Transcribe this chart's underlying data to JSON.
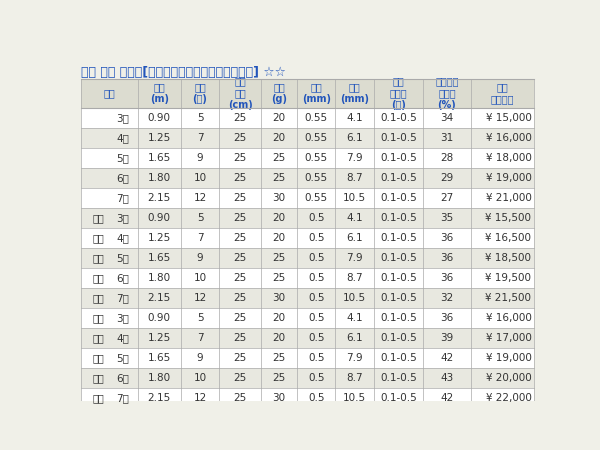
{
  "title": "精魂 別誂 小鮒丹[せいこんべっちょうこぶなたん] ☆☆",
  "title_color": "#2255bb",
  "bg_color": "#f0f0e8",
  "header_bg": "#dcdcd0",
  "row_bg_odd": "#ffffff",
  "row_bg_even": "#e8e8e0",
  "border_color": "#aaaaaa",
  "text_color": "#333333",
  "col_headers": [
    "品番",
    "全長\n(m)",
    "継数\n(本)",
    "仕舞\n寸法\n(cm)",
    "自重\n(g)",
    "先径\n(mm)",
    "元径\n(mm)",
    "適合\nハリス\n(号)",
    "カーボン\n含有率\n(%)",
    "希望\n本体価格"
  ],
  "rows": [
    [
      "",
      "3尺",
      "0.90",
      "5",
      "25",
      "20",
      "0.55",
      "4.1",
      "0.1-0.5",
      "34",
      "¥ 15,000"
    ],
    [
      "",
      "4尺",
      "1.25",
      "7",
      "25",
      "20",
      "0.55",
      "6.1",
      "0.1-0.5",
      "31",
      "¥ 16,000"
    ],
    [
      "",
      "5尺",
      "1.65",
      "9",
      "25",
      "25",
      "0.55",
      "7.9",
      "0.1-0.5",
      "28",
      "¥ 18,000"
    ],
    [
      "",
      "6尺",
      "1.80",
      "10",
      "25",
      "25",
      "0.55",
      "8.7",
      "0.1-0.5",
      "29",
      "¥ 19,000"
    ],
    [
      "",
      "7尺",
      "2.15",
      "12",
      "25",
      "30",
      "0.55",
      "10.5",
      "0.1-0.5",
      "27",
      "¥ 21,000"
    ],
    [
      "中調",
      "3尺",
      "0.90",
      "5",
      "25",
      "20",
      "0.5",
      "4.1",
      "0.1-0.5",
      "35",
      "¥ 15,500"
    ],
    [
      "中調",
      "4尺",
      "1.25",
      "7",
      "25",
      "20",
      "0.5",
      "6.1",
      "0.1-0.5",
      "36",
      "¥ 16,500"
    ],
    [
      "中調",
      "5尺",
      "1.65",
      "9",
      "25",
      "25",
      "0.5",
      "7.9",
      "0.1-0.5",
      "36",
      "¥ 18,500"
    ],
    [
      "中調",
      "6尺",
      "1.80",
      "10",
      "25",
      "25",
      "0.5",
      "8.7",
      "0.1-0.5",
      "36",
      "¥ 19,500"
    ],
    [
      "中調",
      "7尺",
      "2.15",
      "12",
      "25",
      "30",
      "0.5",
      "10.5",
      "0.1-0.5",
      "32",
      "¥ 21,500"
    ],
    [
      "競技",
      "3尺",
      "0.90",
      "5",
      "25",
      "20",
      "0.5",
      "4.1",
      "0.1-0.5",
      "36",
      "¥ 16,000"
    ],
    [
      "競技",
      "4尺",
      "1.25",
      "7",
      "25",
      "20",
      "0.5",
      "6.1",
      "0.1-0.5",
      "39",
      "¥ 17,000"
    ],
    [
      "競技",
      "5尺",
      "1.65",
      "9",
      "25",
      "25",
      "0.5",
      "7.9",
      "0.1-0.5",
      "42",
      "¥ 19,000"
    ],
    [
      "競技",
      "6尺",
      "1.80",
      "10",
      "25",
      "25",
      "0.5",
      "8.7",
      "0.1-0.5",
      "43",
      "¥ 20,000"
    ],
    [
      "競技",
      "7尺",
      "2.15",
      "12",
      "25",
      "30",
      "0.5",
      "10.5",
      "0.1-0.5",
      "42",
      "¥ 22,000"
    ]
  ]
}
